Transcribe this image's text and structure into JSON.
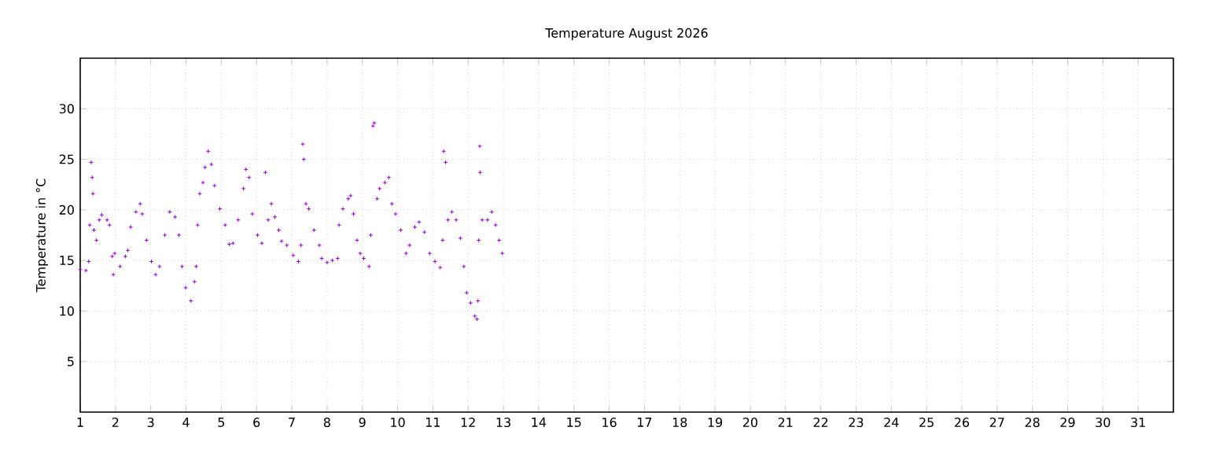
{
  "chart_data": {
    "type": "scatter",
    "title": "Temperature August 2026",
    "ylabel": "Temperature in °C",
    "xlim": [
      1,
      32
    ],
    "xticks": [
      1,
      2,
      3,
      4,
      5,
      6,
      7,
      8,
      9,
      10,
      11,
      12,
      13,
      14,
      15,
      16,
      17,
      18,
      19,
      20,
      21,
      22,
      23,
      24,
      25,
      26,
      27,
      28,
      29,
      30,
      31
    ],
    "ylim": [
      0,
      35
    ],
    "yticks": [
      5,
      10,
      15,
      20,
      25,
      30
    ],
    "grid": true,
    "marker": "cross",
    "series": [
      {
        "color": "#9400d3",
        "x": [
          1.0,
          1.16,
          1.24,
          1.27,
          1.31,
          1.34,
          1.36,
          1.39,
          1.46,
          1.54,
          1.61,
          1.76,
          1.83,
          1.91,
          1.94,
          1.98,
          2.13,
          2.28,
          2.35,
          2.43,
          2.58,
          2.7,
          2.76,
          2.88,
          3.02,
          3.14,
          3.25,
          3.4,
          3.54,
          3.69,
          3.8,
          3.89,
          3.99,
          4.14,
          4.24,
          4.29,
          4.33,
          4.39,
          4.48,
          4.54,
          4.63,
          4.72,
          4.81,
          4.96,
          5.11,
          5.23,
          5.33,
          5.48,
          5.63,
          5.7,
          5.79,
          5.88,
          6.03,
          6.15,
          6.25,
          6.33,
          6.42,
          6.52,
          6.63,
          6.71,
          6.86,
          7.04,
          7.19,
          7.26,
          7.31,
          7.34,
          7.4,
          7.48,
          7.63,
          7.78,
          7.85,
          8.0,
          8.15,
          8.3,
          8.34,
          8.45,
          8.6,
          8.67,
          8.75,
          8.85,
          8.94,
          9.04,
          9.19,
          9.24,
          9.3,
          9.34,
          9.42,
          9.49,
          9.64,
          9.75,
          9.84,
          9.94,
          10.09,
          10.24,
          10.34,
          10.49,
          10.61,
          10.76,
          10.91,
          11.06,
          11.21,
          11.28,
          11.31,
          11.36,
          11.43,
          11.54,
          11.66,
          11.78,
          11.88,
          11.96,
          12.07,
          12.19,
          12.25,
          12.28,
          12.3,
          12.33,
          12.34,
          12.4,
          12.55,
          12.67,
          12.78,
          12.88,
          12.97
        ],
        "values": [
          14.1,
          14.0,
          14.9,
          18.5,
          24.7,
          23.2,
          21.6,
          18.0,
          17.0,
          19.0,
          19.5,
          19.0,
          18.5,
          15.4,
          13.6,
          15.7,
          14.4,
          15.4,
          16.0,
          18.3,
          19.8,
          20.6,
          19.6,
          17.0,
          14.9,
          13.6,
          14.4,
          17.5,
          19.8,
          19.3,
          17.5,
          14.4,
          12.3,
          11.0,
          12.9,
          14.4,
          18.5,
          21.6,
          22.7,
          24.2,
          25.8,
          24.5,
          22.4,
          20.1,
          18.5,
          16.6,
          16.7,
          19.0,
          22.1,
          24.0,
          23.2,
          19.6,
          17.5,
          16.7,
          23.7,
          19.0,
          20.6,
          19.3,
          18.0,
          16.9,
          16.5,
          15.5,
          14.9,
          16.5,
          26.5,
          25.0,
          20.6,
          20.1,
          18.0,
          16.5,
          15.2,
          14.8,
          15.0,
          15.2,
          18.5,
          20.1,
          21.1,
          21.4,
          19.6,
          17.0,
          15.7,
          15.2,
          14.4,
          17.5,
          28.3,
          28.6,
          21.1,
          22.1,
          22.7,
          23.2,
          20.6,
          19.6,
          18.0,
          15.7,
          16.5,
          18.3,
          18.8,
          17.8,
          15.7,
          14.9,
          14.3,
          17.0,
          25.8,
          24.7,
          19.0,
          19.8,
          19.0,
          17.2,
          14.4,
          11.8,
          10.8,
          9.5,
          9.2,
          11.0,
          17.0,
          26.3,
          23.7,
          19.0,
          19.0,
          19.8,
          18.5,
          17.0,
          15.7
        ]
      }
    ]
  }
}
